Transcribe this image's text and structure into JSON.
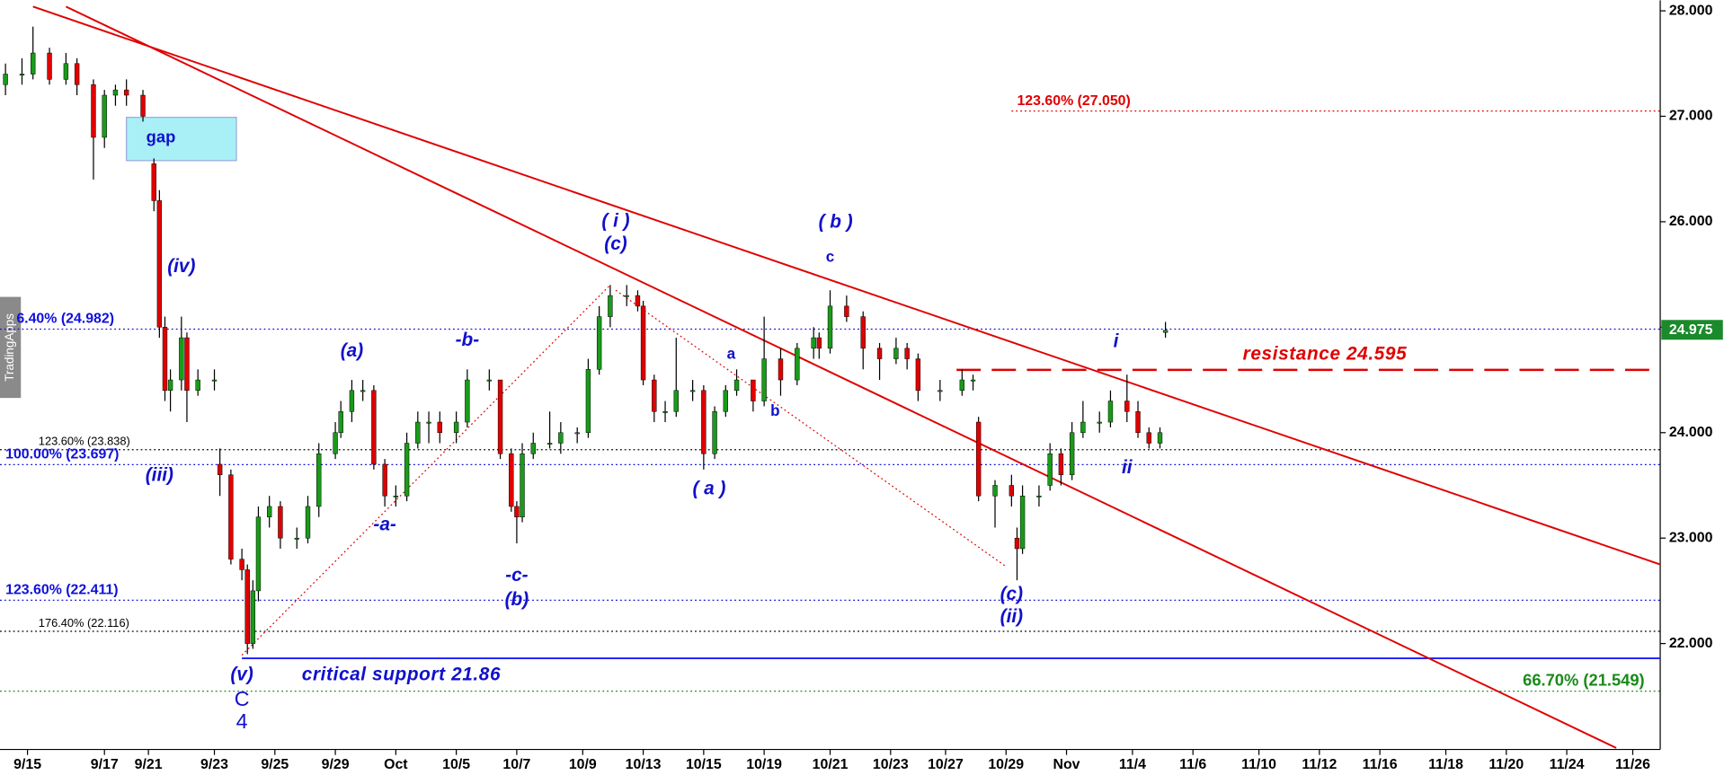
{
  "chart_data": {
    "type": "candlestick",
    "up_color": "#1a9a1a",
    "down_color": "#e00000",
    "x": [
      0,
      3,
      5,
      8,
      11,
      13,
      16,
      18,
      20,
      22,
      25,
      27,
      28,
      29,
      30,
      32,
      33,
      35,
      38,
      39,
      41,
      43,
      44,
      45,
      46,
      48,
      50,
      53,
      55,
      57,
      60,
      61,
      63,
      65,
      67,
      69,
      71,
      73,
      75,
      77,
      79,
      82,
      84,
      88,
      90,
      92,
      93,
      94,
      96,
      99,
      101,
      104,
      106,
      108,
      110,
      113,
      115,
      116,
      118,
      120,
      122,
      125,
      127,
      129,
      131,
      133,
      136,
      138,
      141,
      144,
      147,
      148,
      150,
      153,
      156,
      159,
      162,
      164,
      166,
      170,
      174,
      176,
      177,
      180,
      183,
      184,
      185,
      188,
      190,
      192,
      194,
      196,
      199,
      201,
      204,
      206,
      208,
      210,
      211
    ],
    "open": [
      27.3,
      27.4,
      27.4,
      27.6,
      27.35,
      27.5,
      27.3,
      26.8,
      27.2,
      27.25,
      27.2,
      26.55,
      26.2,
      25.0,
      24.4,
      24.5,
      24.9,
      24.4,
      24.5,
      23.7,
      23.6,
      22.8,
      22.7,
      22.0,
      22.5,
      23.2,
      23.3,
      23.0,
      23.0,
      23.3,
      23.8,
      24.0,
      24.2,
      24.4,
      24.4,
      23.7,
      23.4,
      23.4,
      23.9,
      24.1,
      24.1,
      24.0,
      24.1,
      24.5,
      24.5,
      23.8,
      23.3,
      23.2,
      23.8,
      23.9,
      23.9,
      24.0,
      24.0,
      24.6,
      25.1,
      25.3,
      25.3,
      25.2,
      24.5,
      24.2,
      24.2,
      24.4,
      24.4,
      23.8,
      24.2,
      24.4,
      24.5,
      24.3,
      24.7,
      24.5,
      24.8,
      24.9,
      24.8,
      25.2,
      25.1,
      24.8,
      24.7,
      24.8,
      24.7,
      24.4,
      24.4,
      24.5,
      24.1,
      23.4,
      23.5,
      23.0,
      22.9,
      23.4,
      23.5,
      23.8,
      23.6,
      24.0,
      24.1,
      24.1,
      24.3,
      24.2,
      24.0,
      23.9,
      24.95
    ],
    "high": [
      27.5,
      27.55,
      27.85,
      27.65,
      27.6,
      27.55,
      27.35,
      27.25,
      27.3,
      27.35,
      27.25,
      26.6,
      26.3,
      25.1,
      24.6,
      25.1,
      24.95,
      24.6,
      24.6,
      23.85,
      23.65,
      22.9,
      22.75,
      22.6,
      23.3,
      23.4,
      23.35,
      23.1,
      23.4,
      23.9,
      24.1,
      24.3,
      24.5,
      24.5,
      24.45,
      23.75,
      23.5,
      24.0,
      24.2,
      24.2,
      24.2,
      24.2,
      24.6,
      24.6,
      24.5,
      23.85,
      23.35,
      23.9,
      24.0,
      24.2,
      24.1,
      24.05,
      24.7,
      25.2,
      25.4,
      25.4,
      25.35,
      25.25,
      24.55,
      24.3,
      24.9,
      24.5,
      24.45,
      24.25,
      24.45,
      24.6,
      24.5,
      25.1,
      24.8,
      24.85,
      25.0,
      24.95,
      25.35,
      25.3,
      25.15,
      24.85,
      24.9,
      24.85,
      24.75,
      24.5,
      24.6,
      24.55,
      24.15,
      23.55,
      23.6,
      23.1,
      23.5,
      23.5,
      23.9,
      23.85,
      24.1,
      24.3,
      24.2,
      24.4,
      24.55,
      24.3,
      24.05,
      24.05,
      25.05
    ],
    "low": [
      27.2,
      27.3,
      27.35,
      27.3,
      27.3,
      27.2,
      26.4,
      26.7,
      27.1,
      27.1,
      26.95,
      26.1,
      24.9,
      24.3,
      24.2,
      24.4,
      24.1,
      24.35,
      24.4,
      23.4,
      22.75,
      22.6,
      21.9,
      21.95,
      22.4,
      23.1,
      22.9,
      22.9,
      22.95,
      23.2,
      23.75,
      23.95,
      24.1,
      24.3,
      23.65,
      23.3,
      23.3,
      23.35,
      23.85,
      23.9,
      23.9,
      23.9,
      24.05,
      24.4,
      23.75,
      23.25,
      22.95,
      23.15,
      23.75,
      23.85,
      23.8,
      23.9,
      23.95,
      24.55,
      25.0,
      25.2,
      25.15,
      24.45,
      24.1,
      24.1,
      24.15,
      24.3,
      23.65,
      23.75,
      24.15,
      24.35,
      24.2,
      24.25,
      24.35,
      24.45,
      24.7,
      24.7,
      24.75,
      25.05,
      24.6,
      24.5,
      24.65,
      24.6,
      24.3,
      24.3,
      24.35,
      24.4,
      23.35,
      23.1,
      23.3,
      22.6,
      22.85,
      23.3,
      23.45,
      23.5,
      23.55,
      23.95,
      24.0,
      24.05,
      24.1,
      23.95,
      23.85,
      23.85,
      24.9
    ],
    "close": [
      27.4,
      27.4,
      27.6,
      27.35,
      27.5,
      27.3,
      26.8,
      27.2,
      27.25,
      27.2,
      27.0,
      26.2,
      25.0,
      24.4,
      24.5,
      24.9,
      24.4,
      24.5,
      24.5,
      23.6,
      22.8,
      22.7,
      22.0,
      22.5,
      23.2,
      23.3,
      23.0,
      23.0,
      23.3,
      23.8,
      24.0,
      24.2,
      24.4,
      24.4,
      23.7,
      23.4,
      23.4,
      23.9,
      24.1,
      24.1,
      24.0,
      24.1,
      24.5,
      24.5,
      23.8,
      23.3,
      23.2,
      23.8,
      23.9,
      23.9,
      24.0,
      24.0,
      24.6,
      25.1,
      25.3,
      25.3,
      25.2,
      24.5,
      24.2,
      24.2,
      24.4,
      24.4,
      23.8,
      24.2,
      24.4,
      24.5,
      24.3,
      24.7,
      24.5,
      24.8,
      24.9,
      24.8,
      25.2,
      25.1,
      24.8,
      24.7,
      24.8,
      24.7,
      24.4,
      24.4,
      24.5,
      24.5,
      23.4,
      23.5,
      23.4,
      22.9,
      23.4,
      23.4,
      23.8,
      23.6,
      24.0,
      24.1,
      24.1,
      24.3,
      24.2,
      24.0,
      23.9,
      24.0,
      24.97
    ],
    "xlim": [
      -1,
      301
    ],
    "xticks": [
      {
        "value": 4,
        "label": "9/15"
      },
      {
        "value": 18,
        "label": "9/17"
      },
      {
        "value": 26,
        "label": "9/21"
      },
      {
        "value": 38,
        "label": "9/23"
      },
      {
        "value": 49,
        "label": "9/25"
      },
      {
        "value": 60,
        "label": "9/29"
      },
      {
        "value": 71,
        "label": "Oct"
      },
      {
        "value": 82,
        "label": "10/5"
      },
      {
        "value": 93,
        "label": "10/7"
      },
      {
        "value": 105,
        "label": "10/9"
      },
      {
        "value": 116,
        "label": "10/13"
      },
      {
        "value": 127,
        "label": "10/15"
      },
      {
        "value": 138,
        "label": "10/19"
      },
      {
        "value": 150,
        "label": "10/21"
      },
      {
        "value": 161,
        "label": "10/23"
      },
      {
        "value": 171,
        "label": "10/27"
      },
      {
        "value": 182,
        "label": "10/29"
      },
      {
        "value": 193,
        "label": "Nov"
      },
      {
        "value": 205,
        "label": "11/4"
      },
      {
        "value": 216,
        "label": "11/6"
      },
      {
        "value": 228,
        "label": "11/10"
      },
      {
        "value": 239,
        "label": "11/12"
      },
      {
        "value": 250,
        "label": "11/16"
      },
      {
        "value": 262,
        "label": "11/18"
      },
      {
        "value": 273,
        "label": "11/20"
      },
      {
        "value": 284,
        "label": "11/24"
      },
      {
        "value": 296,
        "label": "11/26"
      }
    ],
    "ylim": [
      21.0,
      28.1
    ],
    "yticks": [
      {
        "value": 22,
        "label": "22.000"
      },
      {
        "value": 23,
        "label": "23.000"
      },
      {
        "value": 24,
        "label": "24.000"
      },
      {
        "value": 25,
        "label": "25.000"
      },
      {
        "value": 26,
        "label": "26.000"
      },
      {
        "value": 27,
        "label": "27.000"
      },
      {
        "value": 28,
        "label": "28.000"
      }
    ],
    "last_price": {
      "value": 24.975,
      "label": "24.975",
      "color": "#1a8a2a"
    },
    "levels": [
      {
        "value": 27.05,
        "label": "123.60% (27.050)",
        "color": "#e00000",
        "style": "dotted",
        "from": 183,
        "label_x": 184
      },
      {
        "value": 24.982,
        "label": "6.40% (24.982)",
        "color": "#1010dd",
        "style": "dotted",
        "from": -1,
        "label_x": 2
      },
      {
        "value": 23.838,
        "label": "123.60% (23.838)",
        "color": "#000000",
        "style": "dotted",
        "from": -1,
        "label_x": 6
      },
      {
        "value": 23.697,
        "label": "100.00% (23.697)",
        "color": "#1010dd",
        "style": "dotted",
        "from": -1,
        "label_x": 0
      },
      {
        "value": 22.411,
        "label": "123.60% (22.411)",
        "color": "#1010dd",
        "style": "dotted",
        "from": -1,
        "label_x": 0
      },
      {
        "value": 22.116,
        "label": "176.40% (22.116)",
        "color": "#000000",
        "style": "dotted",
        "from": -1,
        "label_x": 6
      },
      {
        "value": 21.86,
        "color": "#1a1aff",
        "style": "solid",
        "from": 43
      },
      {
        "value": 21.549,
        "label": "66.70% (21.549)",
        "color": "#1a8a1a",
        "style": "dotted",
        "from": -1,
        "label_x": 276
      },
      {
        "value": 24.595,
        "color": "#e00000",
        "style": "dashed",
        "from": 173
      }
    ],
    "trendlines": [
      {
        "x": [
          5,
          301
        ],
        "y": [
          28.04,
          22.75
        ],
        "color": "#e00000",
        "style": "solid"
      },
      {
        "x": [
          11,
          293
        ],
        "y": [
          28.04,
          21.01
        ],
        "color": "#e00000",
        "style": "solid"
      },
      {
        "x": [
          43,
          110
        ],
        "y": [
          21.89,
          25.4
        ],
        "color": "#e00000",
        "style": "dotted"
      },
      {
        "x": [
          111,
          182
        ],
        "y": [
          25.35,
          22.73
        ],
        "color": "#e00000",
        "style": "dotted"
      }
    ],
    "zones": [
      {
        "x": [
          22,
          42
        ],
        "y": [
          26.58,
          26.99
        ],
        "color": "#a8f0f6",
        "label": "gap"
      }
    ],
    "annotations": [
      {
        "text": "(iv)",
        "x": 32,
        "y": 25.57,
        "color": "#1010cc",
        "style": "wave"
      },
      {
        "text": "(iii)",
        "x": 28,
        "y": 23.59,
        "color": "#1010cc",
        "style": "wave"
      },
      {
        "text": "(v)",
        "x": 43,
        "y": 21.7,
        "color": "#1010cc",
        "style": "wave"
      },
      {
        "text": "C",
        "x": 43,
        "y": 21.46,
        "color": "#1010cc",
        "style": "big"
      },
      {
        "text": "4",
        "x": 43,
        "y": 21.25,
        "color": "#1010cc",
        "style": "big"
      },
      {
        "text": "(a)",
        "x": 63,
        "y": 24.77,
        "color": "#1010cc",
        "style": "wave"
      },
      {
        "text": "-b-",
        "x": 84,
        "y": 24.87,
        "color": "#1010cc",
        "style": "wave"
      },
      {
        "text": "-a-",
        "x": 69,
        "y": 23.12,
        "color": "#1010cc",
        "style": "wave"
      },
      {
        "text": "-c-",
        "x": 93,
        "y": 22.64,
        "color": "#1010cc",
        "style": "wave"
      },
      {
        "text": "(b)",
        "x": 93,
        "y": 22.41,
        "color": "#1010cc",
        "style": "wave"
      },
      {
        "text": "( i )",
        "x": 111,
        "y": 26.0,
        "color": "#1010cc",
        "style": "wave"
      },
      {
        "text": "(c)",
        "x": 111,
        "y": 25.78,
        "color": "#1010cc",
        "style": "wave"
      },
      {
        "text": "( b )",
        "x": 151,
        "y": 25.99,
        "color": "#1010cc",
        "style": "wave"
      },
      {
        "text": "c",
        "x": 150,
        "y": 25.66,
        "color": "#1010cc",
        "style": "minor"
      },
      {
        "text": "a",
        "x": 132,
        "y": 24.74,
        "color": "#1010cc",
        "style": "minor"
      },
      {
        "text": "b",
        "x": 140,
        "y": 24.2,
        "color": "#1010cc",
        "style": "minor"
      },
      {
        "text": "( a )",
        "x": 128,
        "y": 23.46,
        "color": "#1010cc",
        "style": "wave"
      },
      {
        "text": "(c)",
        "x": 183,
        "y": 22.46,
        "color": "#1010cc",
        "style": "wave"
      },
      {
        "text": "(ii)",
        "x": 183,
        "y": 22.25,
        "color": "#1010cc",
        "style": "wave"
      },
      {
        "text": "i",
        "x": 202,
        "y": 24.86,
        "color": "#1010cc",
        "style": "wave"
      },
      {
        "text": "ii",
        "x": 204,
        "y": 23.66,
        "color": "#1010cc",
        "style": "wave"
      },
      {
        "text": "critical support 21.86",
        "x": 72,
        "y": 21.7,
        "color": "#1010cc",
        "style": "wave"
      },
      {
        "text": "resistance 24.595",
        "x": 240,
        "y": 24.74,
        "color": "#e00000",
        "style": "wave"
      }
    ],
    "watermark": "TradingApps"
  }
}
